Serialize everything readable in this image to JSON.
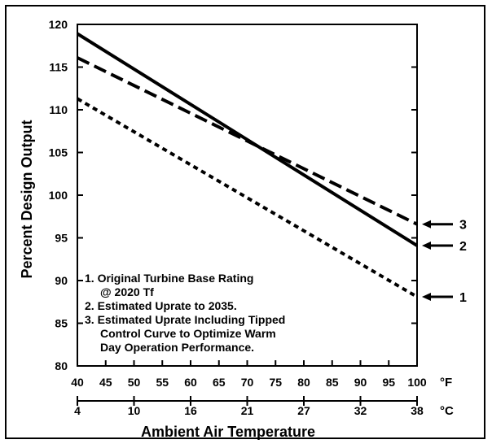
{
  "chart_data": {
    "type": "line",
    "ylabel": "Percent Design Output",
    "xlabel": "Ambient Air Temperature",
    "x_unit_label": "°F",
    "x2_unit_label": "°C",
    "xlim": [
      40,
      100
    ],
    "ylim": [
      80,
      120
    ],
    "x_ticks": [
      40,
      45,
      50,
      55,
      60,
      65,
      70,
      75,
      80,
      85,
      90,
      95,
      100
    ],
    "y_ticks": [
      80,
      85,
      90,
      95,
      100,
      105,
      110,
      115,
      120
    ],
    "x2_ticks": [
      {
        "value_f": 40,
        "label": "4"
      },
      {
        "value_f": 50,
        "label": "10"
      },
      {
        "value_f": 60,
        "label": "16"
      },
      {
        "value_f": 70,
        "label": "21"
      },
      {
        "value_f": 80,
        "label": "27"
      },
      {
        "value_f": 90,
        "label": "32"
      },
      {
        "value_f": 100,
        "label": "38"
      }
    ],
    "series": [
      {
        "label": "1",
        "style": "dotted",
        "x": [
          40,
          100
        ],
        "y": [
          111.3,
          88.1
        ]
      },
      {
        "label": "2",
        "style": "solid",
        "x": [
          40,
          100
        ],
        "y": [
          118.9,
          94.1
        ]
      },
      {
        "label": "3",
        "style": "dashed",
        "x": [
          40,
          100
        ],
        "y": [
          116.1,
          96.6
        ]
      }
    ],
    "legend_placement": "bottom-left",
    "legend": [
      "1. Original Turbine Base Rating",
      "@ 2020 Tf",
      "2. Estimated Uprate to 2035.",
      "3. Estimated Uprate Including Tipped",
      "Control Curve to Optimize Warm",
      "Day Operation Performance."
    ],
    "grid": false,
    "colors": {
      "line": "#000000",
      "background": "#ffffff"
    }
  }
}
